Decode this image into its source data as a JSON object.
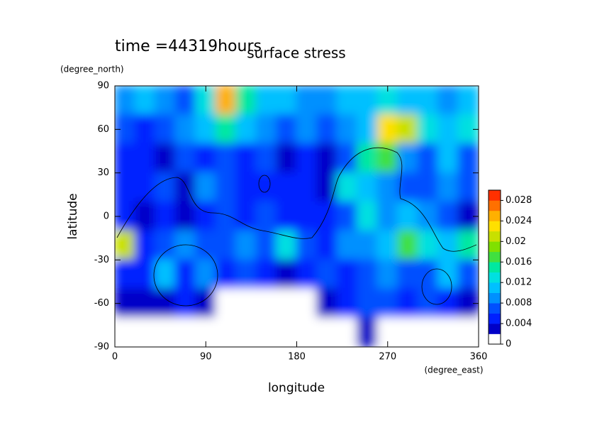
{
  "chart_data": {
    "type": "contour",
    "subtitle": "time =44319hours",
    "title": "surface stress",
    "ylabel": "latitude",
    "y_unit": "(degree_north)",
    "xlabel": "longitude",
    "x_unit": "(degree_east)",
    "x": [
      10,
      30,
      50,
      70,
      90,
      110,
      130,
      150,
      170,
      190,
      210,
      230,
      250,
      270,
      290,
      310,
      330,
      350
    ],
    "y": [
      80,
      60,
      40,
      20,
      0,
      -20,
      -40,
      -60,
      -80
    ],
    "z": [
      [
        0.008,
        0.01,
        0.008,
        0.006,
        0.012,
        0.024,
        0.014,
        0.01,
        0.01,
        0.008,
        0.008,
        0.01,
        0.01,
        0.012,
        0.01,
        0.01,
        0.008,
        0.01
      ],
      [
        0.006,
        0.004,
        0.006,
        0.008,
        0.01,
        0.014,
        0.01,
        0.008,
        0.006,
        0.008,
        0.006,
        0.008,
        0.01,
        0.022,
        0.02,
        0.012,
        0.01,
        0.012
      ],
      [
        0.004,
        0.004,
        0.002,
        0.006,
        0.004,
        0.006,
        0.004,
        0.006,
        0.002,
        0.004,
        0.002,
        0.006,
        0.014,
        0.016,
        0.008,
        0.006,
        0.01,
        0.006
      ],
      [
        0.004,
        0.004,
        0.006,
        0.002,
        0.008,
        0.006,
        0.004,
        0.004,
        0.004,
        0.004,
        0.002,
        0.012,
        0.01,
        0.008,
        0.006,
        0.006,
        0.008,
        0.006
      ],
      [
        0.004,
        0.002,
        0.004,
        0.002,
        0.004,
        0.006,
        0.004,
        0.006,
        0.004,
        0.004,
        0.004,
        0.006,
        0.012,
        0.008,
        0.01,
        0.008,
        0.006,
        0.002
      ],
      [
        0.02,
        0.004,
        0.006,
        0.008,
        0.006,
        0.006,
        0.008,
        0.006,
        0.012,
        0.006,
        0.004,
        0.008,
        0.008,
        0.01,
        0.016,
        0.012,
        0.01,
        0.014
      ],
      [
        0.004,
        0.004,
        0.01,
        0.004,
        0.008,
        0.004,
        0.006,
        0.004,
        0.002,
        0.004,
        0.006,
        0.004,
        0.006,
        0.008,
        0.006,
        0.006,
        0.01,
        0.006
      ],
      [
        0.002,
        0.002,
        0.002,
        0.004,
        0.002,
        0,
        0,
        0,
        0,
        0,
        0.002,
        0.004,
        0.006,
        0.006,
        0.004,
        0.006,
        0.004,
        0.002
      ],
      [
        0,
        0,
        0,
        0,
        0,
        0,
        0,
        0,
        0,
        0,
        0,
        0,
        0.002,
        0,
        0,
        0,
        0,
        0
      ]
    ],
    "xlim": [
      0,
      360
    ],
    "xticks": [
      0,
      90,
      180,
      270,
      360
    ],
    "ylim": [
      -90,
      90
    ],
    "yticks": [
      -90,
      -60,
      -30,
      0,
      30,
      60,
      90
    ],
    "zlim": [
      0,
      0.03
    ],
    "zticks": [
      0,
      0.004,
      0.008,
      0.012,
      0.016,
      0.02,
      0.024,
      0.028
    ],
    "colors": [
      "#ffffff",
      "#0000c8",
      "#0020ff",
      "#0050ff",
      "#0090ff",
      "#00c0ff",
      "#00e0e0",
      "#00e8a0",
      "#40e040",
      "#80e000",
      "#c8e000",
      "#ffe000",
      "#ffb000",
      "#ff7000",
      "#ff3000"
    ]
  }
}
